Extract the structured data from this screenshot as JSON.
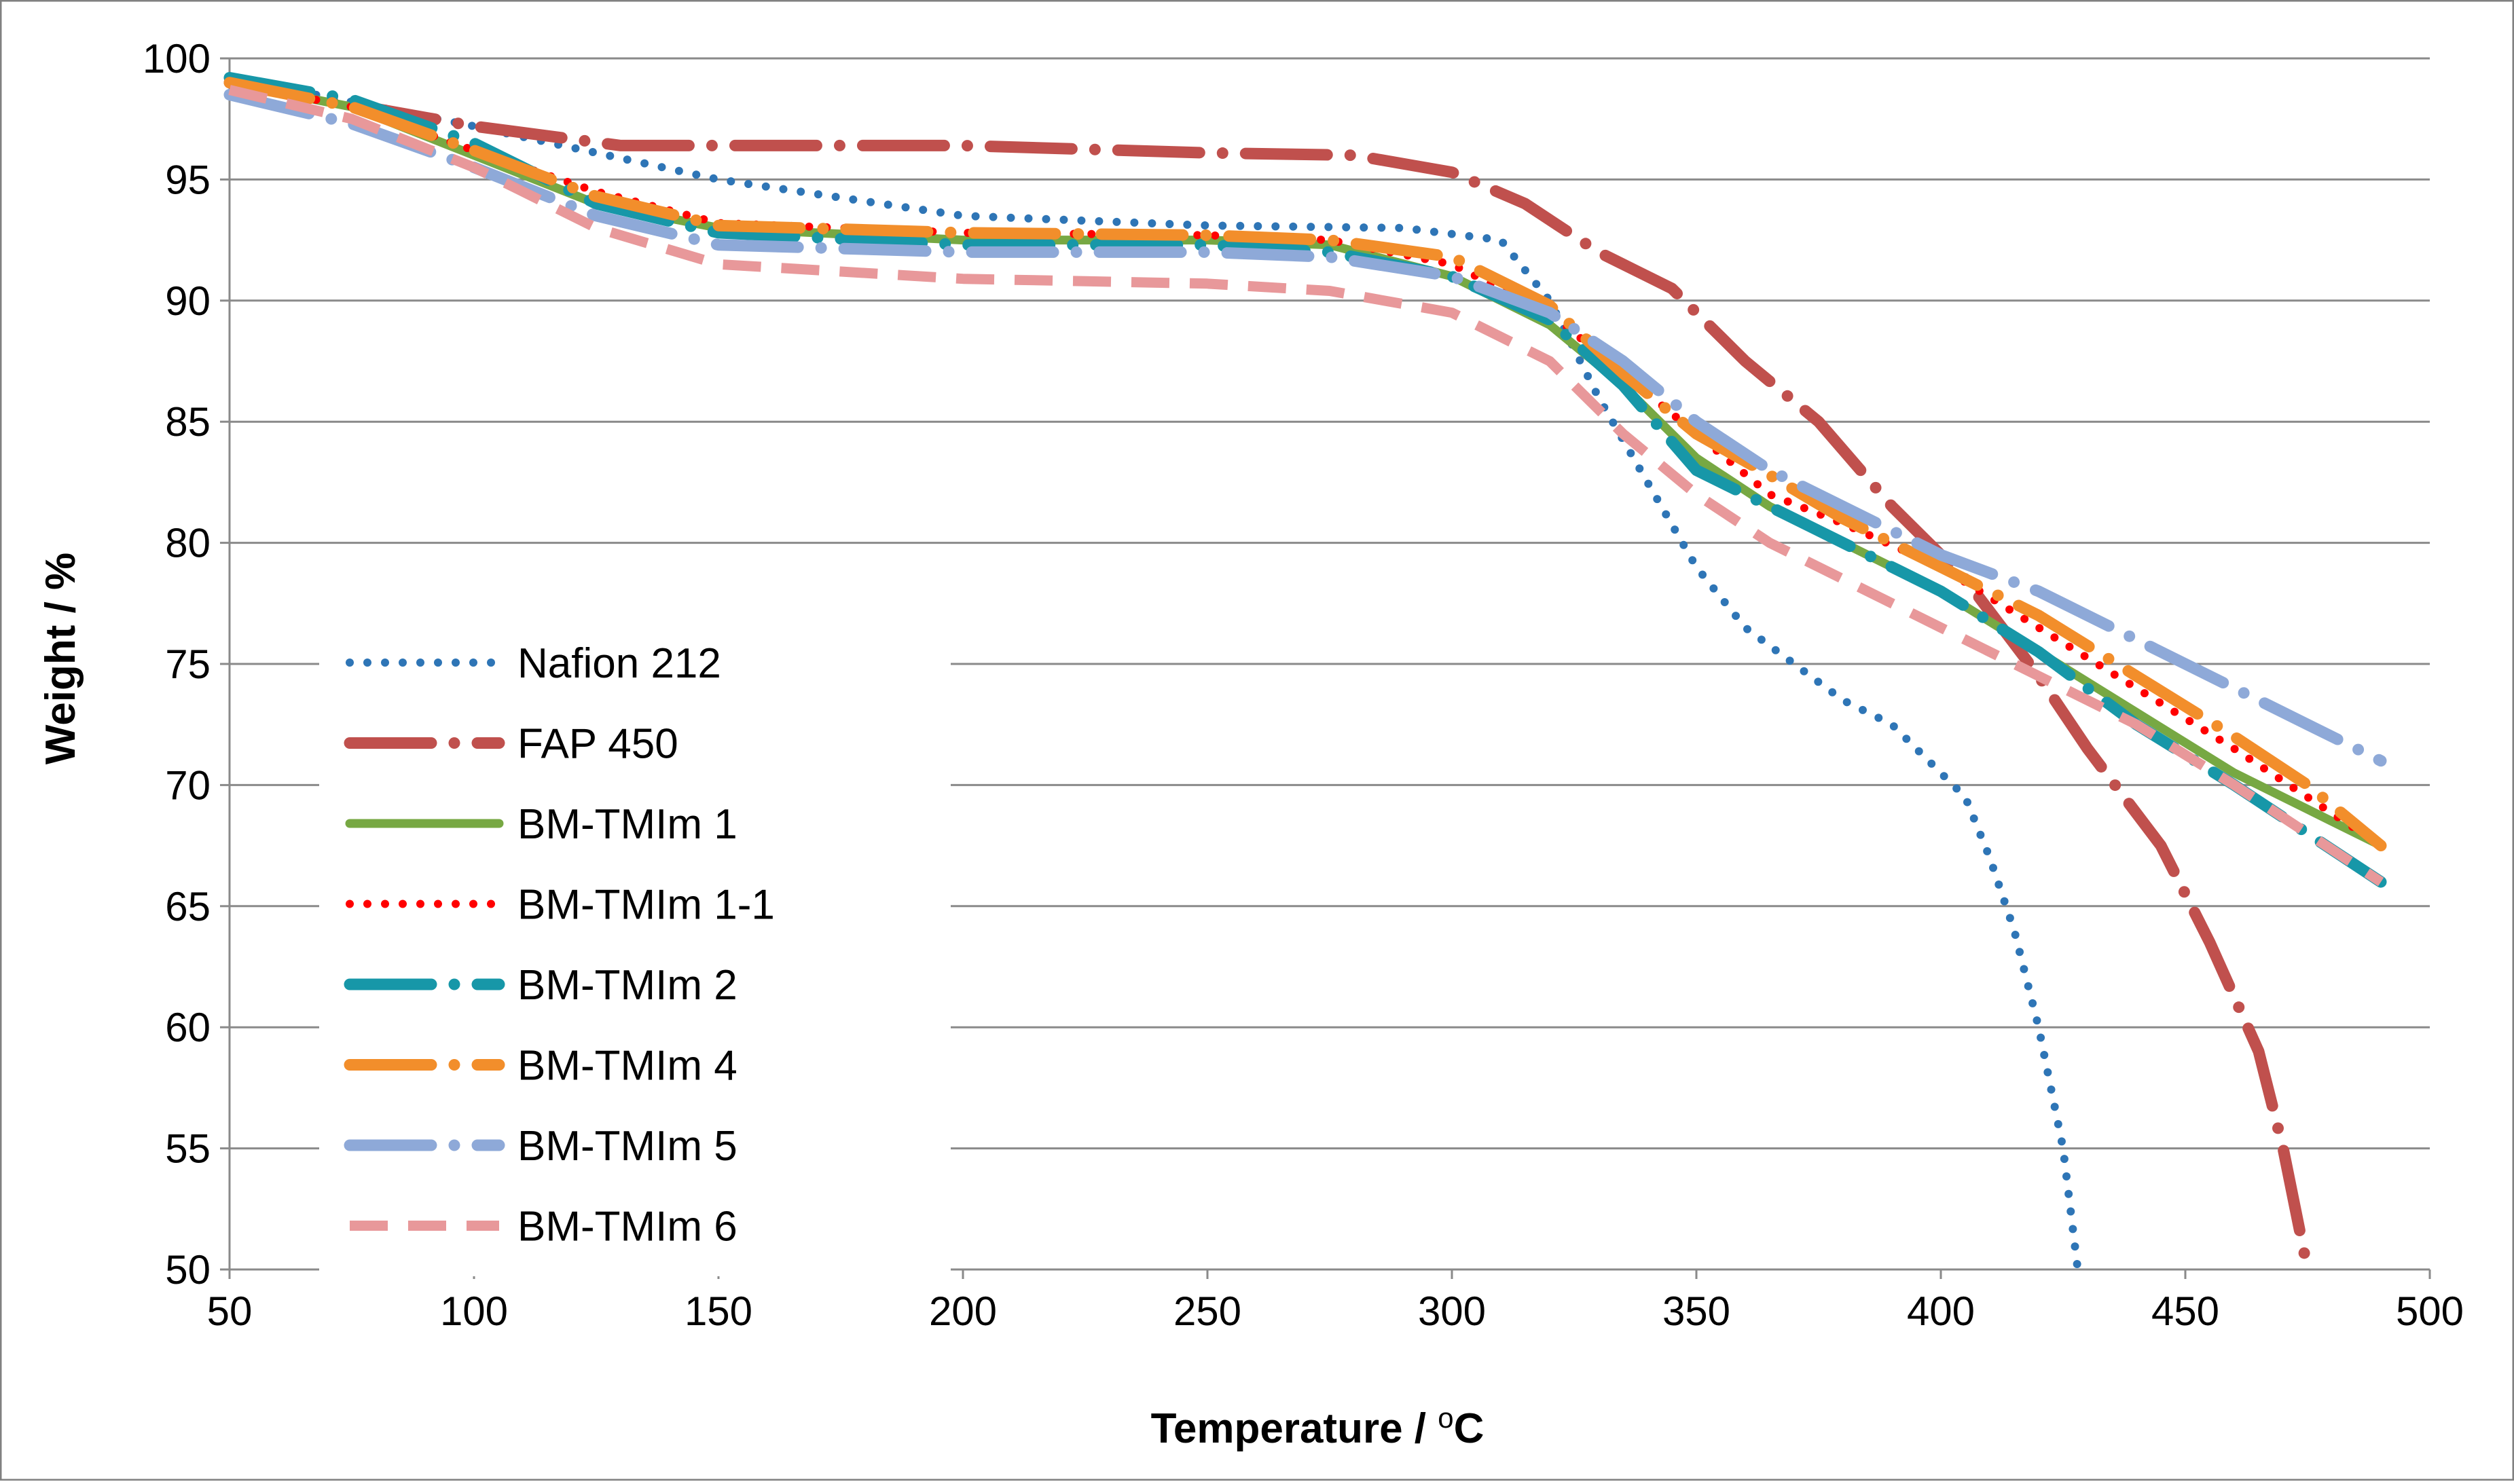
{
  "chart_data": {
    "type": "line",
    "title": "",
    "xlabel": "Temperature / °C",
    "xlabel_parts": {
      "main": "Temperature / ",
      "superscript": "o",
      "unit": "C"
    },
    "ylabel": "Weight / %",
    "xlim": [
      50,
      500
    ],
    "ylim": [
      50,
      100
    ],
    "xticks": [
      50,
      100,
      150,
      200,
      250,
      300,
      350,
      400,
      450,
      500
    ],
    "yticks": [
      50,
      55,
      60,
      65,
      70,
      75,
      80,
      85,
      90,
      95,
      100
    ],
    "grid": "horizontal",
    "legend": "left",
    "series": [
      {
        "name": "Nafion 212",
        "color": "#2E75B6",
        "style": "round-dot",
        "x": [
          50,
          100,
          150,
          200,
          250,
          290,
          310,
          320,
          330,
          340,
          350,
          360,
          370,
          380,
          390,
          400,
          405,
          410,
          415,
          420,
          425,
          428
        ],
        "y": [
          99.2,
          97.2,
          95.0,
          93.5,
          93.1,
          93.0,
          92.5,
          90.0,
          86.0,
          82.5,
          79.0,
          76.5,
          75.0,
          73.5,
          72.5,
          70.5,
          69.5,
          67.0,
          64.0,
          60.0,
          55.0,
          50.0
        ]
      },
      {
        "name": "FAP 450",
        "color": "#C0504D",
        "style": "long-dash-dot",
        "x": [
          50,
          100,
          130,
          200,
          250,
          280,
          300,
          315,
          330,
          345,
          360,
          375,
          390,
          405,
          420,
          430,
          445,
          455,
          465,
          470,
          475
        ],
        "y": [
          99.0,
          97.2,
          96.4,
          96.4,
          96.1,
          96.0,
          95.3,
          94.0,
          92.0,
          90.5,
          87.5,
          85.0,
          81.5,
          78.5,
          74.5,
          71.5,
          67.5,
          63.5,
          59.0,
          55.0,
          50.0
        ]
      },
      {
        "name": "BM-TMIm 1",
        "color": "#77A843",
        "style": "solid",
        "x": [
          50,
          75,
          100,
          125,
          150,
          200,
          250,
          275,
          300,
          320,
          335,
          350,
          365,
          380,
          400,
          420,
          440,
          460,
          475,
          490
        ],
        "y": [
          99.0,
          98.0,
          96.0,
          94.0,
          93.0,
          92.5,
          92.5,
          92.3,
          91.0,
          89.0,
          86.5,
          83.5,
          81.5,
          80.0,
          78.0,
          75.5,
          73.0,
          70.5,
          69.0,
          67.5
        ]
      },
      {
        "name": "BM-TMIm 1-1",
        "color": "#FF0000",
        "style": "round-dot",
        "x": [
          50,
          75,
          100,
          125,
          150,
          200,
          250,
          275,
          300,
          320,
          335,
          350,
          365,
          380,
          400,
          420,
          440,
          460,
          475,
          490
        ],
        "y": [
          99.0,
          98.0,
          96.2,
          94.5,
          93.2,
          92.8,
          92.7,
          92.5,
          91.5,
          89.5,
          87.0,
          84.5,
          82.0,
          80.8,
          79.0,
          76.5,
          74.0,
          71.5,
          69.5,
          67.5
        ]
      },
      {
        "name": "BM-TMIm 2",
        "color": "#1797A8",
        "style": "long-dash-dot",
        "x": [
          50,
          75,
          100,
          125,
          150,
          200,
          250,
          275,
          300,
          320,
          335,
          350,
          365,
          380,
          400,
          420,
          440,
          460,
          475,
          490
        ],
        "y": [
          99.2,
          98.3,
          96.5,
          94.0,
          92.8,
          92.3,
          92.3,
          92.0,
          91.0,
          89.2,
          86.5,
          83.0,
          81.5,
          80.0,
          78.0,
          75.5,
          72.5,
          70.0,
          68.0,
          66.0
        ]
      },
      {
        "name": "BM-TMIm 4",
        "color": "#F28E2B",
        "style": "long-dash-dot",
        "x": [
          50,
          75,
          100,
          125,
          150,
          200,
          250,
          275,
          300,
          320,
          335,
          350,
          365,
          380,
          400,
          420,
          440,
          460,
          475,
          490
        ],
        "y": [
          99.0,
          98.0,
          96.2,
          94.3,
          93.1,
          92.8,
          92.7,
          92.5,
          91.8,
          89.8,
          87.0,
          84.5,
          82.8,
          81.0,
          79.0,
          77.0,
          74.5,
          72.0,
          70.0,
          67.5
        ]
      },
      {
        "name": "BM-TMIm 5",
        "color": "#8EA9D8",
        "style": "long-dash-dot",
        "x": [
          50,
          75,
          100,
          125,
          150,
          200,
          250,
          275,
          300,
          320,
          335,
          350,
          365,
          380,
          400,
          420,
          440,
          460,
          475,
          490
        ],
        "y": [
          98.5,
          97.3,
          95.5,
          93.5,
          92.3,
          92.0,
          92.0,
          91.8,
          91.0,
          89.5,
          87.5,
          85.0,
          83.0,
          81.5,
          79.5,
          78.0,
          76.0,
          74.0,
          72.5,
          71.0
        ]
      },
      {
        "name": "BM-TMIm 6",
        "color": "#E8989A",
        "style": "dash",
        "x": [
          50,
          75,
          100,
          125,
          150,
          200,
          250,
          275,
          300,
          320,
          335,
          350,
          365,
          380,
          400,
          420,
          440,
          460,
          475,
          490
        ],
        "y": [
          98.7,
          97.5,
          95.5,
          93.0,
          91.5,
          90.9,
          90.7,
          90.4,
          89.5,
          87.5,
          84.5,
          82.0,
          80.0,
          78.5,
          76.5,
          74.5,
          72.5,
          70.0,
          68.0,
          66.0
        ]
      }
    ]
  }
}
